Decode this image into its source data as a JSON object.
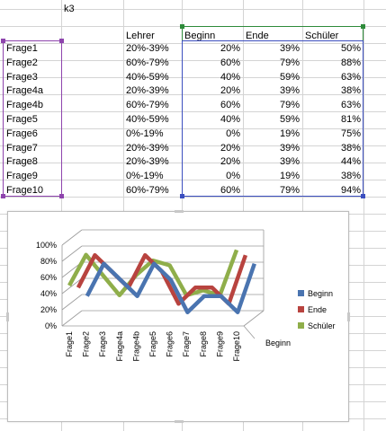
{
  "sheet": {
    "title_cell": "k3",
    "headers": {
      "lehrer": "Lehrer",
      "beginn": "Beginn",
      "ende": "Ende",
      "schueler": "Schüler"
    },
    "rows": [
      {
        "frage": "Frage1",
        "lehrer": "20%-39%",
        "beginn": "20%",
        "ende": "39%",
        "schueler": "50%"
      },
      {
        "frage": "Frage2",
        "lehrer": "60%-79%",
        "beginn": "60%",
        "ende": "79%",
        "schueler": "88%"
      },
      {
        "frage": "Frage3",
        "lehrer": "40%-59%",
        "beginn": "40%",
        "ende": "59%",
        "schueler": "63%"
      },
      {
        "frage": "Frage4a",
        "lehrer": "20%-39%",
        "beginn": "20%",
        "ende": "39%",
        "schueler": "38%"
      },
      {
        "frage": "Frage4b",
        "lehrer": "60%-79%",
        "beginn": "60%",
        "ende": "79%",
        "schueler": "63%"
      },
      {
        "frage": "Frage5",
        "lehrer": "40%-59%",
        "beginn": "40%",
        "ende": "59%",
        "schueler": "81%"
      },
      {
        "frage": "Frage6",
        "lehrer": "0%-19%",
        "beginn": "0%",
        "ende": "19%",
        "schueler": "75%"
      },
      {
        "frage": "Frage7",
        "lehrer": "20%-39%",
        "beginn": "20%",
        "ende": "39%",
        "schueler": "38%"
      },
      {
        "frage": "Frage8",
        "lehrer": "20%-39%",
        "beginn": "20%",
        "ende": "39%",
        "schueler": "44%"
      },
      {
        "frage": "Frage9",
        "lehrer": "0%-19%",
        "beginn": "0%",
        "ende": "19%",
        "schueler": "38%"
      },
      {
        "frage": "Frage10",
        "lehrer": "60%-79%",
        "beginn": "60%",
        "ende": "79%",
        "schueler": "94%"
      }
    ]
  },
  "colors": {
    "beginn": "#4a74b0",
    "ende": "#b8433f",
    "schueler": "#8fae4a",
    "sel_purple": "#8e44ad",
    "sel_green": "#2e8b3a",
    "sel_blue": "#3c4fbf"
  },
  "chart_data": {
    "type": "line",
    "style": "3d",
    "categories": [
      "Frage1",
      "Frage2",
      "Frage3",
      "Frage4a",
      "Frage4b",
      "Frage5",
      "Frage6",
      "Frage7",
      "Frage8",
      "Frage9",
      "Frage10"
    ],
    "series": [
      {
        "name": "Beginn",
        "values": [
          20,
          60,
          40,
          20,
          60,
          40,
          0,
          20,
          20,
          0,
          60
        ]
      },
      {
        "name": "Ende",
        "values": [
          39,
          79,
          59,
          39,
          79,
          59,
          19,
          39,
          39,
          19,
          79
        ]
      },
      {
        "name": "Schüler",
        "values": [
          50,
          88,
          63,
          38,
          63,
          81,
          75,
          38,
          44,
          38,
          94
        ]
      }
    ],
    "ytick_labels": [
      "100%",
      "80%",
      "60%",
      "40%",
      "20%",
      "0%"
    ],
    "ylim": [
      0,
      100
    ],
    "depth_label": "Beginn",
    "legend": "right",
    "grid": true
  }
}
